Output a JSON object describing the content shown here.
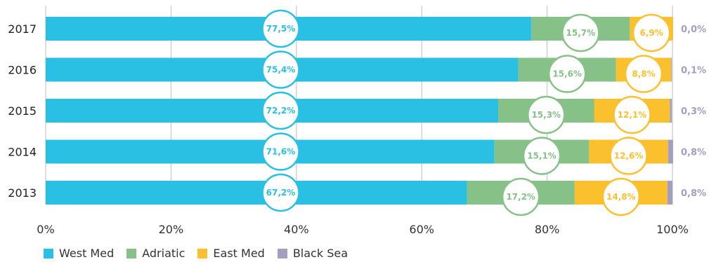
{
  "chart_data": {
    "type": "bar",
    "orientation": "horizontal",
    "stacked": true,
    "categories": [
      "2017",
      "2016",
      "2015",
      "2014",
      "2013"
    ],
    "series": [
      {
        "name": "West Med",
        "color": "#29C0E3",
        "values": [
          77.5,
          75.4,
          72.2,
          71.6,
          67.2
        ],
        "labels": [
          "77,5%",
          "75,4%",
          "72,2%",
          "71,6%",
          "67,2%"
        ]
      },
      {
        "name": "Adriatic",
        "color": "#86C188",
        "values": [
          15.7,
          15.6,
          15.3,
          15.1,
          17.2
        ],
        "labels": [
          "15,7%",
          "15,6%",
          "15,3%",
          "15,1%",
          "17,2%"
        ]
      },
      {
        "name": "East Med",
        "color": "#FBC02D",
        "values": [
          6.9,
          8.8,
          12.1,
          12.6,
          14.8
        ],
        "labels": [
          "6,9%",
          "8,8%",
          "12,1%",
          "12,6%",
          "14,8%"
        ]
      },
      {
        "name": "Black Sea",
        "color": "#A39FC2",
        "values": [
          0.0,
          0.1,
          0.3,
          0.8,
          0.8
        ],
        "labels": [
          "0,0%",
          "0,1%",
          "0,3%",
          "0,8%",
          "0,8%"
        ]
      }
    ],
    "xlim": [
      0,
      100
    ],
    "xticks": [
      "0%",
      "20%",
      "40%",
      "60%",
      "80%",
      "100%"
    ],
    "grid": true,
    "legend_position": "bottom-left"
  }
}
